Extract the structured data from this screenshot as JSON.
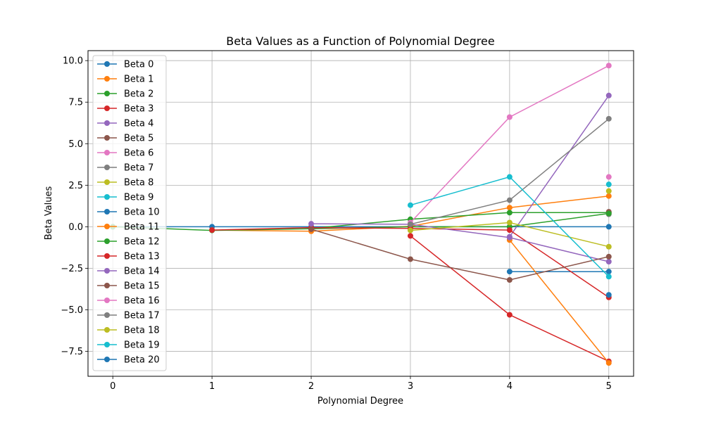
{
  "chart_data": {
    "type": "line",
    "title": "Beta Values as a Function of Polynomial Degree",
    "xlabel": "Polynomial Degree",
    "ylabel": "Beta Values",
    "x_ticks": [
      0,
      1,
      2,
      3,
      4,
      5
    ],
    "y_ticks": [
      -7.5,
      -5.0,
      -2.5,
      0.0,
      2.5,
      5.0,
      7.5,
      10.0
    ],
    "y_tick_labels": [
      "−7.5",
      "−5.0",
      "−2.5",
      "0.0",
      "2.5",
      "5.0",
      "7.5",
      "10.0"
    ],
    "xlim": [
      -0.25,
      5.25
    ],
    "ylim": [
      -9.0,
      10.6
    ],
    "grid": true,
    "legend_position": "upper-left",
    "series": [
      {
        "name": "Beta 0",
        "color": "#1f77b4",
        "points": [
          [
            0,
            0.0
          ],
          [
            1,
            0.0
          ],
          [
            2,
            0.0
          ],
          [
            3,
            0.0
          ],
          [
            4,
            0.0
          ],
          [
            5,
            0.0
          ]
        ]
      },
      {
        "name": "Beta 1",
        "color": "#ff7f0e",
        "points": [
          [
            1,
            -0.2
          ],
          [
            2,
            -0.27
          ],
          [
            3,
            0.03
          ],
          [
            4,
            1.15
          ],
          [
            5,
            1.85
          ]
        ]
      },
      {
        "name": "Beta 2",
        "color": "#2ca02c",
        "points": [
          [
            2,
            -0.1
          ],
          [
            3,
            0.45
          ],
          [
            4,
            0.85
          ],
          [
            5,
            0.85
          ]
        ]
      },
      {
        "name": "Beta 3",
        "color": "#d62728",
        "points": [
          [
            3,
            -0.55
          ],
          [
            4,
            -5.3
          ],
          [
            5,
            -8.1
          ]
        ]
      },
      {
        "name": "Beta 4",
        "color": "#9467bd",
        "points": [
          [
            4,
            -0.6
          ],
          [
            5,
            7.9
          ]
        ]
      },
      {
        "name": "Beta 5",
        "color": "#8c564b",
        "points": [
          [
            5,
            0.9
          ]
        ]
      },
      {
        "name": "Beta 6",
        "color": "#e377c2",
        "points": [
          [
            5,
            3.0
          ]
        ]
      },
      {
        "name": "Beta 7",
        "color": "#7f7f7f",
        "points": [
          [
            5,
            0.75
          ]
        ]
      },
      {
        "name": "Beta 8",
        "color": "#bcbd22",
        "points": [
          [
            5,
            2.15
          ]
        ]
      },
      {
        "name": "Beta 9",
        "color": "#17becf",
        "points": [
          [
            5,
            2.55
          ]
        ]
      },
      {
        "name": "Beta 10",
        "color": "#1f77b4",
        "points": [
          [
            4,
            -2.7
          ],
          [
            5,
            -2.7
          ]
        ]
      },
      {
        "name": "Beta 11",
        "color": "#ff7f0e",
        "points": [
          [
            4,
            -0.8
          ],
          [
            5,
            -8.2
          ]
        ]
      },
      {
        "name": "Beta 12",
        "color": "#2ca02c",
        "points": [
          [
            0,
            0.0
          ],
          [
            1,
            -0.22
          ],
          [
            2,
            -0.12
          ],
          [
            3,
            0.0
          ],
          [
            4,
            0.0
          ],
          [
            5,
            0.8
          ]
        ]
      },
      {
        "name": "Beta 13",
        "color": "#d62728",
        "points": [
          [
            1,
            -0.2
          ],
          [
            2,
            -0.05
          ],
          [
            3,
            -0.1
          ],
          [
            4,
            -0.2
          ],
          [
            5,
            -4.25
          ]
        ]
      },
      {
        "name": "Beta 14",
        "color": "#9467bd",
        "points": [
          [
            2,
            0.18
          ],
          [
            3,
            0.15
          ],
          [
            4,
            -0.65
          ],
          [
            5,
            -2.1
          ]
        ]
      },
      {
        "name": "Beta 15",
        "color": "#8c564b",
        "points": [
          [
            2,
            -0.15
          ],
          [
            3,
            -1.95
          ],
          [
            4,
            -3.2
          ],
          [
            5,
            -1.8
          ]
        ]
      },
      {
        "name": "Beta 16",
        "color": "#e377c2",
        "points": [
          [
            3,
            0.25
          ],
          [
            4,
            6.6
          ],
          [
            5,
            9.7
          ]
        ]
      },
      {
        "name": "Beta 17",
        "color": "#7f7f7f",
        "points": [
          [
            3,
            0.15
          ],
          [
            4,
            1.6
          ],
          [
            5,
            6.5
          ]
        ]
      },
      {
        "name": "Beta 18",
        "color": "#bcbd22",
        "points": [
          [
            3,
            -0.22
          ],
          [
            4,
            0.25
          ],
          [
            5,
            -1.2
          ]
        ]
      },
      {
        "name": "Beta 19",
        "color": "#17becf",
        "points": [
          [
            3,
            1.3
          ],
          [
            4,
            3.0
          ],
          [
            5,
            -3.0
          ]
        ]
      },
      {
        "name": "Beta 20",
        "color": "#1f77b4",
        "points": [
          [
            5,
            -4.1
          ]
        ]
      }
    ]
  }
}
